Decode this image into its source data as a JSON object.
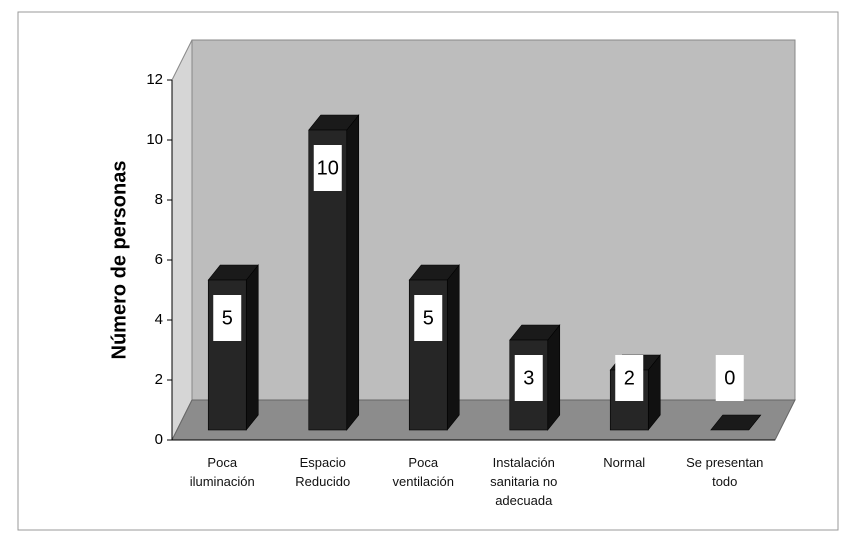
{
  "chart_data": {
    "type": "bar3d",
    "y_label": "Número de personas",
    "categories": [
      "Poca iluminación",
      "Espacio Reducido",
      "Poca ventilación",
      "Instalación sanitaria no adecuada",
      "Normal",
      "Se presentan todo"
    ],
    "values": [
      5,
      10,
      5,
      3,
      2,
      0
    ],
    "color": "#262626",
    "ylim": [
      0,
      12
    ],
    "yticks": [
      0,
      2,
      4,
      6,
      8,
      10,
      12
    ]
  }
}
